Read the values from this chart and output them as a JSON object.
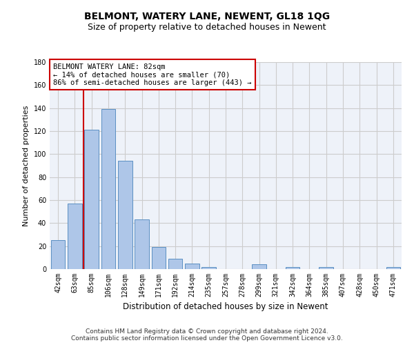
{
  "title": "BELMONT, WATERY LANE, NEWENT, GL18 1QG",
  "subtitle": "Size of property relative to detached houses in Newent",
  "xlabel": "Distribution of detached houses by size in Newent",
  "ylabel": "Number of detached properties",
  "categories": [
    "42sqm",
    "63sqm",
    "85sqm",
    "106sqm",
    "128sqm",
    "149sqm",
    "171sqm",
    "192sqm",
    "214sqm",
    "235sqm",
    "257sqm",
    "278sqm",
    "299sqm",
    "321sqm",
    "342sqm",
    "364sqm",
    "385sqm",
    "407sqm",
    "428sqm",
    "450sqm",
    "471sqm"
  ],
  "values": [
    25,
    57,
    121,
    139,
    94,
    43,
    19,
    9,
    5,
    2,
    0,
    0,
    4,
    0,
    2,
    0,
    2,
    0,
    0,
    0,
    2
  ],
  "bar_color": "#aec6e8",
  "bar_edge_color": "#5a8fc2",
  "vline_color": "#cc0000",
  "vline_x_index": 1.5,
  "annotation_text": "BELMONT WATERY LANE: 82sqm\n← 14% of detached houses are smaller (70)\n86% of semi-detached houses are larger (443) →",
  "annotation_box_color": "#ffffff",
  "annotation_box_edge_color": "#cc0000",
  "ylim": [
    0,
    180
  ],
  "yticks": [
    0,
    20,
    40,
    60,
    80,
    100,
    120,
    140,
    160,
    180
  ],
  "grid_color": "#cccccc",
  "background_color": "#eef2f9",
  "footer_line1": "Contains HM Land Registry data © Crown copyright and database right 2024.",
  "footer_line2": "Contains public sector information licensed under the Open Government Licence v3.0.",
  "title_fontsize": 10,
  "subtitle_fontsize": 9,
  "ylabel_fontsize": 8,
  "xlabel_fontsize": 8.5,
  "annotation_fontsize": 7.5,
  "tick_fontsize": 7,
  "footer_fontsize": 6.5
}
